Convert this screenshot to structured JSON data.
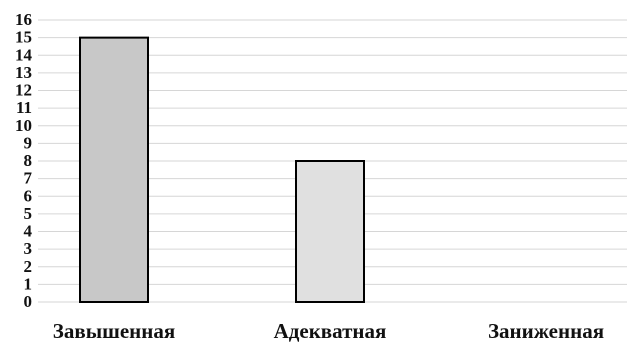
{
  "chart_data": {
    "type": "bar",
    "title": "",
    "xlabel": "",
    "ylabel": "",
    "categories": [
      "Завышенная",
      "Адекватная",
      "Заниженная"
    ],
    "values": [
      15,
      8,
      0
    ],
    "ylim": [
      0,
      16
    ],
    "yticks": [
      "0",
      "1",
      "2",
      "3",
      "4",
      "5",
      "6",
      "7",
      "8",
      "9",
      "10",
      "11",
      "12",
      "13",
      "14",
      "15",
      "16"
    ],
    "grid": true,
    "legend": "none",
    "bar_colors": [
      "#c8c8c8",
      "#e0e0e0",
      "#ffffff"
    ],
    "gridline_color": "#d6d6d6"
  }
}
